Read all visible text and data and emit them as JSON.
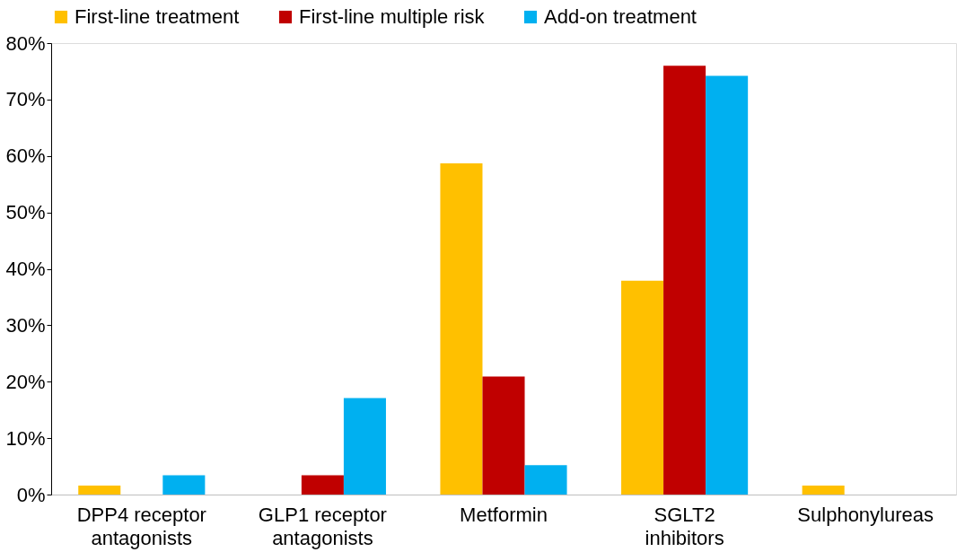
{
  "chart_data": {
    "type": "bar",
    "categories": [
      "DPP4 receptor antagonists",
      "GLP1 receptor antagonists",
      "Metformin",
      "SGLT2 inhibitors",
      "Sulphonylureas"
    ],
    "series": [
      {
        "name": "First-line treatment",
        "color": "#ffc000",
        "values": [
          1.6,
          0,
          58.7,
          37.9,
          1.6
        ]
      },
      {
        "name": "First-line multiple risk",
        "color": "#c00000",
        "values": [
          0,
          3.4,
          20.9,
          76.0,
          0
        ]
      },
      {
        "name": "Add-on treatment",
        "color": "#00b0f0",
        "values": [
          3.4,
          17.1,
          5.2,
          74.2,
          0
        ]
      }
    ],
    "ylim": [
      0,
      80
    ],
    "yticks": [
      {
        "value": 0,
        "label": "0%"
      },
      {
        "value": 10,
        "label": "10%"
      },
      {
        "value": 20,
        "label": "20%"
      },
      {
        "value": 30,
        "label": "30%"
      },
      {
        "value": 40,
        "label": "40%"
      },
      {
        "value": 50,
        "label": "50%"
      },
      {
        "value": 60,
        "label": "60%"
      },
      {
        "value": 70,
        "label": "70%"
      },
      {
        "value": 80,
        "label": "80%"
      }
    ],
    "grid": false,
    "legend": "top"
  }
}
